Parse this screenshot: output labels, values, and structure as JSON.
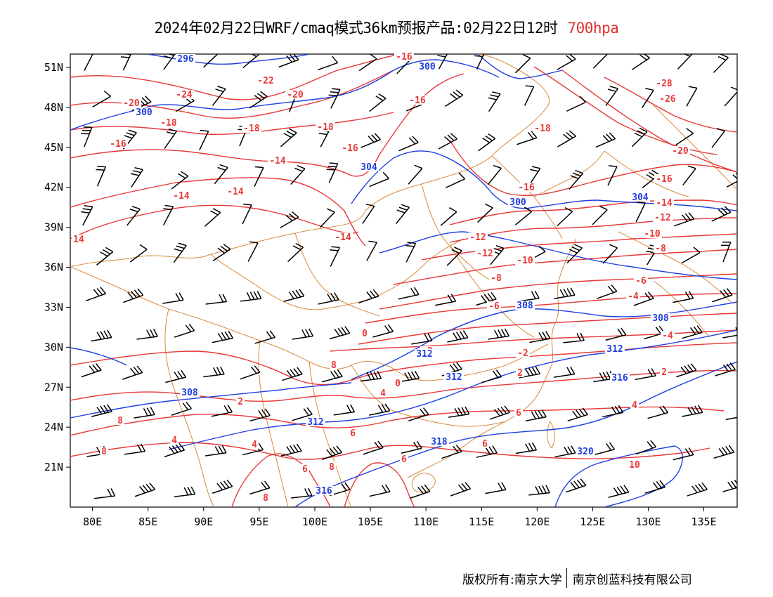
{
  "title": {
    "main": "2024年02月22日WRF/cmaq模式36km预报产品:02月22日12时",
    "level": "700hpa"
  },
  "colors": {
    "temperature": "#e83838",
    "height": "#1f3fe0",
    "border": "#d98a3c",
    "wind": "#000000",
    "level_text": "#e03030"
  },
  "map": {
    "lon_range": [
      78,
      138
    ],
    "lat_range": [
      18,
      52
    ],
    "lon_ticks": [
      "80E",
      "85E",
      "90E",
      "95E",
      "100E",
      "105E",
      "110E",
      "115E",
      "120E",
      "125E",
      "130E",
      "135E"
    ],
    "lat_ticks": [
      "51N",
      "48N",
      "45N",
      "42N",
      "39N",
      "36N",
      "33N",
      "30N",
      "27N",
      "24N",
      "21N"
    ],
    "temperature_labels": [
      "-28",
      "-26",
      "-24",
      "-22",
      "-20",
      "-20",
      "-20",
      "-18",
      "-18",
      "-18",
      "-18",
      "-16",
      "-16",
      "-16",
      "-16",
      "-16",
      "-16",
      "-14",
      "-14",
      "-14",
      "-14",
      "-14",
      "-14",
      "-12",
      "-12",
      "-12",
      "-10",
      "-10",
      "-8",
      "-8",
      "-6",
      "-6",
      "-4",
      "-4",
      "-2",
      "-2",
      "0",
      "0",
      "2",
      "2",
      "2",
      "4",
      "4",
      "4",
      "4",
      "6",
      "6",
      "6",
      "6",
      "6",
      "8",
      "8",
      "8",
      "8",
      "8",
      "10",
      "14"
    ],
    "height_labels": [
      "296",
      "300",
      "300",
      "300",
      "304",
      "304",
      "308",
      "308",
      "308",
      "312",
      "312",
      "312",
      "312",
      "316",
      "316",
      "318",
      "320"
    ]
  },
  "footer": {
    "left": "版权所有:南京大学",
    "right": "南京创蓝科技有限公司"
  }
}
